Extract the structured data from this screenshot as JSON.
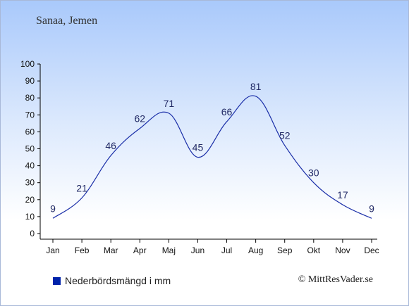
{
  "header": {
    "location": "Sanaa, Jemen"
  },
  "legend": {
    "label": "Nederbördsmängd i mm",
    "color": "#0022aa"
  },
  "footer": {
    "credit": "© MittResVader.se"
  },
  "colors": {
    "line": "#1a2ea8",
    "label": "#222a66",
    "axis": "#000000"
  },
  "chart_data": {
    "type": "line",
    "categories": [
      "Jan",
      "Feb",
      "Mar",
      "Apr",
      "Maj",
      "Jun",
      "Jul",
      "Aug",
      "Sep",
      "Okt",
      "Nov",
      "Dec"
    ],
    "series": [
      {
        "name": "Nederbördsmängd i mm",
        "values": [
          9,
          21,
          46,
          62,
          71,
          45,
          66,
          81,
          52,
          30,
          17,
          9
        ]
      }
    ],
    "ylim": [
      0,
      100
    ],
    "yticks": [
      0,
      10,
      20,
      30,
      40,
      50,
      60,
      70,
      80,
      90,
      100
    ],
    "grid": false,
    "data_labels": true,
    "legend_position": "bottom-left"
  }
}
